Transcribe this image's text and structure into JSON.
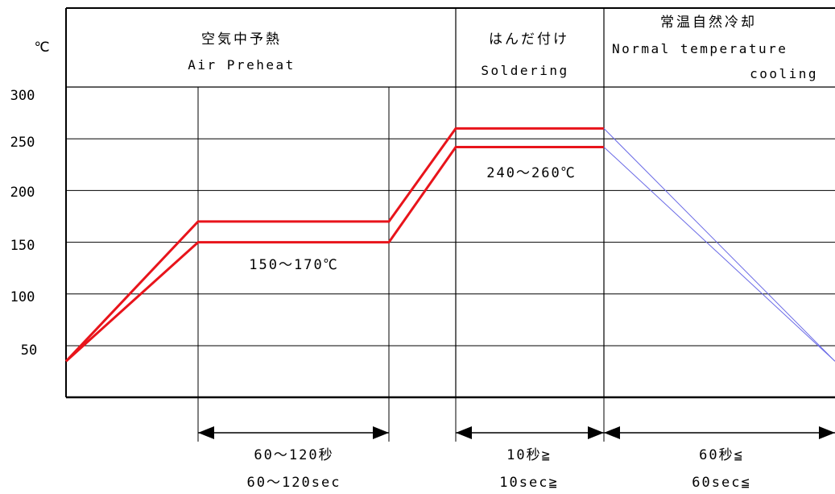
{
  "chart_data": {
    "type": "line",
    "title": "",
    "xlabel": "",
    "ylabel": "℃",
    "y_ticks": [
      300,
      250,
      200,
      150,
      100,
      50
    ],
    "grid": true,
    "stages": [
      {
        "name_ja": "空気中予熱",
        "name_en": [
          "Air Preheat"
        ]
      },
      {
        "name_ja": "はんだ付け",
        "name_en": [
          "Soldering"
        ]
      },
      {
        "name_ja": "常温自然冷却",
        "name_en": [
          "Normal temperature",
          "cooling"
        ]
      }
    ],
    "annotations": {
      "preheat_range": "150～170℃",
      "soldering_range": "240～260℃"
    },
    "durations": [
      {
        "ja": "60～120秒",
        "en": "60～120sec"
      },
      {
        "ja": "10秒≧",
        "en": "10sec≧"
      },
      {
        "ja": "60秒≦",
        "en": "60sec≦"
      }
    ],
    "series": [
      {
        "color": "#e8141b",
        "y": [
          35,
          170,
          170,
          260,
          260
        ]
      },
      {
        "color": "#e8141b",
        "y": [
          35,
          150,
          150,
          242,
          242
        ]
      },
      {
        "color": "#6a6ae6",
        "y": [
          260,
          35
        ]
      },
      {
        "color": "#6a6ae6",
        "y": [
          242,
          35
        ]
      }
    ],
    "colors": {
      "profile": "#e8141b",
      "cooling": "#6a6ae6",
      "grid": "#000000"
    }
  }
}
